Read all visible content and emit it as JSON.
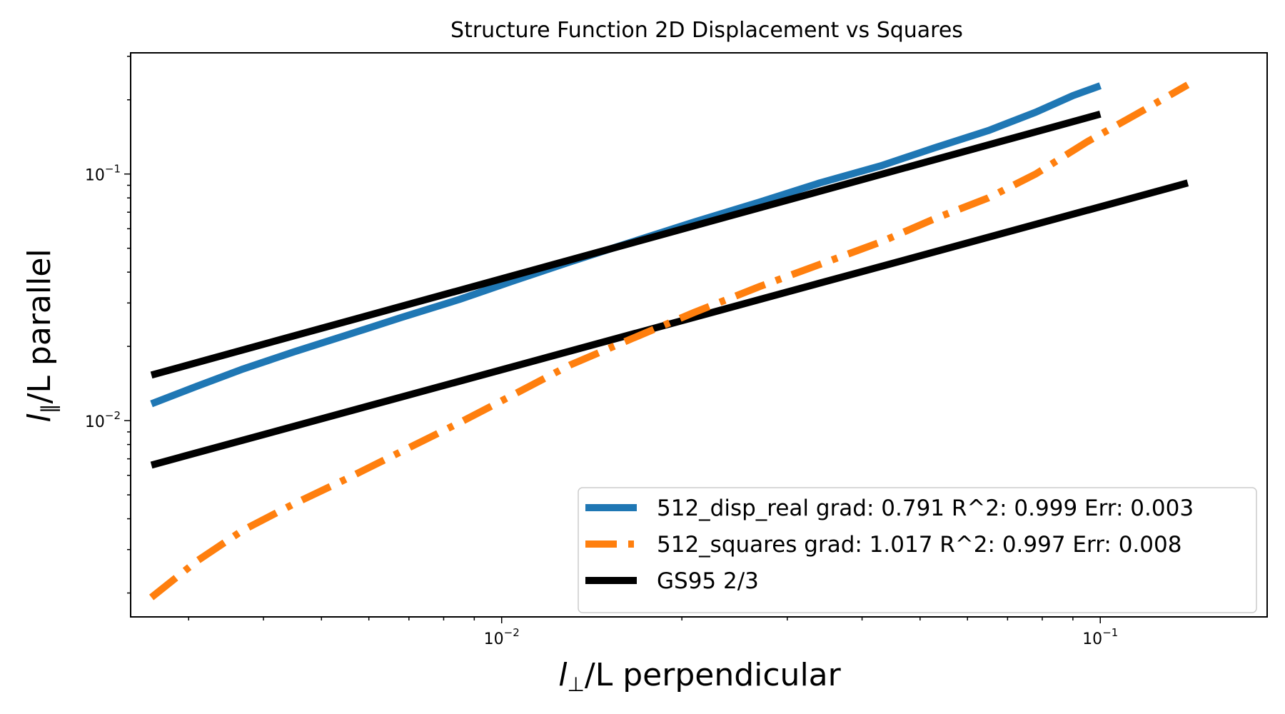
{
  "chart_data": {
    "type": "line",
    "title": "Structure Function 2D Displacement vs Squares",
    "xlabel": {
      "var": "l",
      "sub": "⊥",
      "rest": "/L perpendicular"
    },
    "ylabel": {
      "var": "l",
      "sub": "∥",
      "rest": "/L parallel"
    },
    "xscale": "log",
    "yscale": "log",
    "xlim": [
      0.0024,
      0.19
    ],
    "ylim": [
      0.0016,
      0.31
    ],
    "x_ticks": [
      {
        "value": 0.01,
        "base": "10",
        "exp": "−2"
      },
      {
        "value": 0.1,
        "base": "10",
        "exp": "−1"
      }
    ],
    "y_ticks": [
      {
        "value": 0.01,
        "base": "10",
        "exp": "−2"
      },
      {
        "value": 0.1,
        "base": "10",
        "exp": "−1"
      }
    ],
    "grid": false,
    "legend_position": "lower-right",
    "series": [
      {
        "name": "512_disp_real grad: 0.791 R^2: 0.999  Err: 0.003",
        "color": "#1f77b4",
        "style": "solid",
        "points": [
          [
            0.0026,
            0.0117
          ],
          [
            0.0031,
            0.0138
          ],
          [
            0.0037,
            0.0162
          ],
          [
            0.0045,
            0.019
          ],
          [
            0.0055,
            0.0222
          ],
          [
            0.0068,
            0.0262
          ],
          [
            0.0085,
            0.031
          ],
          [
            0.0105,
            0.037
          ],
          [
            0.013,
            0.044
          ],
          [
            0.0165,
            0.053
          ],
          [
            0.021,
            0.064
          ],
          [
            0.027,
            0.077
          ],
          [
            0.034,
            0.092
          ],
          [
            0.043,
            0.108
          ],
          [
            0.053,
            0.128
          ],
          [
            0.065,
            0.15
          ],
          [
            0.078,
            0.178
          ],
          [
            0.09,
            0.208
          ],
          [
            0.1,
            0.228
          ]
        ]
      },
      {
        "name": "512_squares grad: 1.017 R^2: 0.997  Err: 0.008",
        "color": "#ff7f0e",
        "style": "dashdot",
        "points": [
          [
            0.0026,
            0.00192
          ],
          [
            0.0031,
            0.0027
          ],
          [
            0.0037,
            0.0036
          ],
          [
            0.0045,
            0.0046
          ],
          [
            0.0055,
            0.0058
          ],
          [
            0.0068,
            0.0075
          ],
          [
            0.0085,
            0.0098
          ],
          [
            0.0105,
            0.0128
          ],
          [
            0.013,
            0.0168
          ],
          [
            0.0165,
            0.0215
          ],
          [
            0.021,
            0.0275
          ],
          [
            0.027,
            0.035
          ],
          [
            0.034,
            0.043
          ],
          [
            0.043,
            0.053
          ],
          [
            0.053,
            0.066
          ],
          [
            0.065,
            0.08
          ],
          [
            0.078,
            0.1
          ],
          [
            0.095,
            0.135
          ],
          [
            0.115,
            0.175
          ],
          [
            0.14,
            0.23
          ]
        ]
      },
      {
        "name": "GS95 2/3",
        "color": "#000000",
        "style": "solid",
        "points": [
          [
            0.0026,
            0.0153
          ],
          [
            0.1,
            0.175
          ]
        ]
      },
      {
        "name": "",
        "color": "#000000",
        "style": "solid",
        "points": [
          [
            0.0026,
            0.0066
          ],
          [
            0.14,
            0.092
          ]
        ]
      }
    ]
  }
}
